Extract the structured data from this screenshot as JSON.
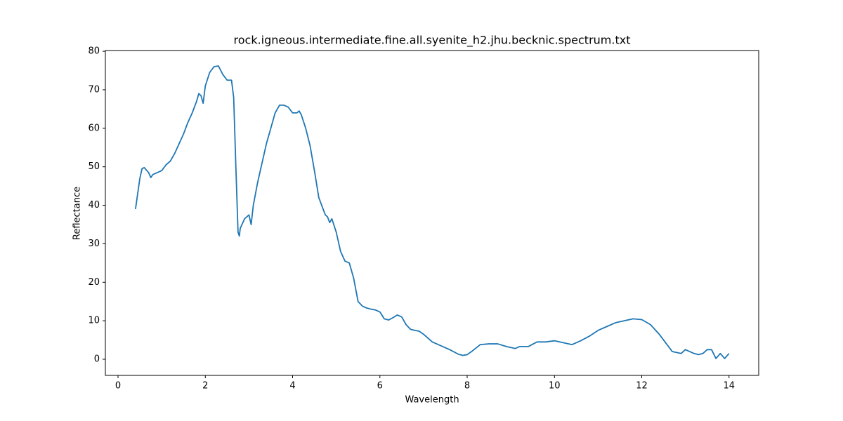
{
  "chart_data": {
    "type": "line",
    "title": "rock.igneous.intermediate.fine.all.syenite_h2.jhu.becknic.spectrum.txt",
    "x_label": "Wavelength",
    "y_label": "Reflectance",
    "x": [
      0.4,
      0.45,
      0.5,
      0.55,
      0.6,
      0.7,
      0.75,
      0.8,
      0.9,
      1.0,
      1.1,
      1.2,
      1.3,
      1.4,
      1.5,
      1.6,
      1.7,
      1.8,
      1.85,
      1.9,
      1.95,
      2.0,
      2.1,
      2.2,
      2.3,
      2.4,
      2.5,
      2.6,
      2.65,
      2.7,
      2.75,
      2.78,
      2.8,
      2.9,
      3.0,
      3.05,
      3.1,
      3.2,
      3.3,
      3.4,
      3.5,
      3.6,
      3.7,
      3.8,
      3.9,
      4.0,
      4.1,
      4.15,
      4.2,
      4.3,
      4.4,
      4.5,
      4.6,
      4.7,
      4.75,
      4.8,
      4.85,
      4.9,
      5.0,
      5.1,
      5.2,
      5.3,
      5.4,
      5.5,
      5.6,
      5.7,
      5.8,
      5.9,
      6.0,
      6.1,
      6.2,
      6.3,
      6.4,
      6.5,
      6.6,
      6.7,
      6.8,
      6.9,
      7.0,
      7.2,
      7.4,
      7.6,
      7.8,
      7.9,
      8.0,
      8.1,
      8.3,
      8.5,
      8.7,
      8.9,
      9.1,
      9.2,
      9.4,
      9.6,
      9.8,
      10.0,
      10.2,
      10.4,
      10.6,
      10.8,
      11.0,
      11.2,
      11.4,
      11.6,
      11.8,
      12.0,
      12.2,
      12.4,
      12.6,
      12.7,
      12.9,
      13.0,
      13.1,
      13.2,
      13.3,
      13.4,
      13.5,
      13.6,
      13.7,
      13.8,
      13.9,
      14.0
    ],
    "series": [
      {
        "name": "Reflectance",
        "color": "#1f77b4",
        "values": [
          39,
          43,
          47,
          49.5,
          49.8,
          48.5,
          47.2,
          48,
          48.5,
          49,
          50.5,
          51.5,
          53.5,
          56,
          58.5,
          61.5,
          64,
          67,
          69,
          68.5,
          66.5,
          71,
          74.5,
          76,
          76.2,
          74,
          72.5,
          72.5,
          68,
          50,
          33,
          32,
          34,
          36.5,
          37.5,
          35,
          40,
          46,
          51,
          56,
          60,
          64,
          66,
          66,
          65.5,
          64,
          64,
          64.5,
          63.5,
          60,
          55.5,
          49,
          42,
          39,
          37.5,
          37,
          35.5,
          36.5,
          33,
          28,
          25.5,
          25,
          21,
          15,
          13.8,
          13.3,
          13,
          12.8,
          12.3,
          10.5,
          10.2,
          10.8,
          11.5,
          11,
          9,
          7.8,
          7.5,
          7.3,
          6.5,
          4.5,
          3.5,
          2.5,
          1.3,
          1.0,
          1.2,
          2.0,
          3.8,
          4.0,
          4.0,
          3.3,
          2.8,
          3.3,
          3.3,
          4.5,
          4.5,
          4.8,
          4.3,
          3.8,
          4.8,
          6,
          7.5,
          8.5,
          9.5,
          10,
          10.5,
          10.3,
          9,
          6.5,
          3.5,
          2,
          1.5,
          2.5,
          2,
          1.5,
          1.2,
          1.5,
          2.5,
          2.5,
          0.2,
          1.5,
          0.2,
          1.5
        ]
      }
    ],
    "xlim": [
      -0.29,
      14.68
    ],
    "xticks": [
      0,
      2,
      4,
      6,
      8,
      10,
      12,
      14
    ],
    "ylim": [
      -4.19,
      80.2
    ],
    "yticks": [
      0,
      10,
      20,
      30,
      40,
      50,
      60,
      70,
      80
    ],
    "grid": false
  }
}
